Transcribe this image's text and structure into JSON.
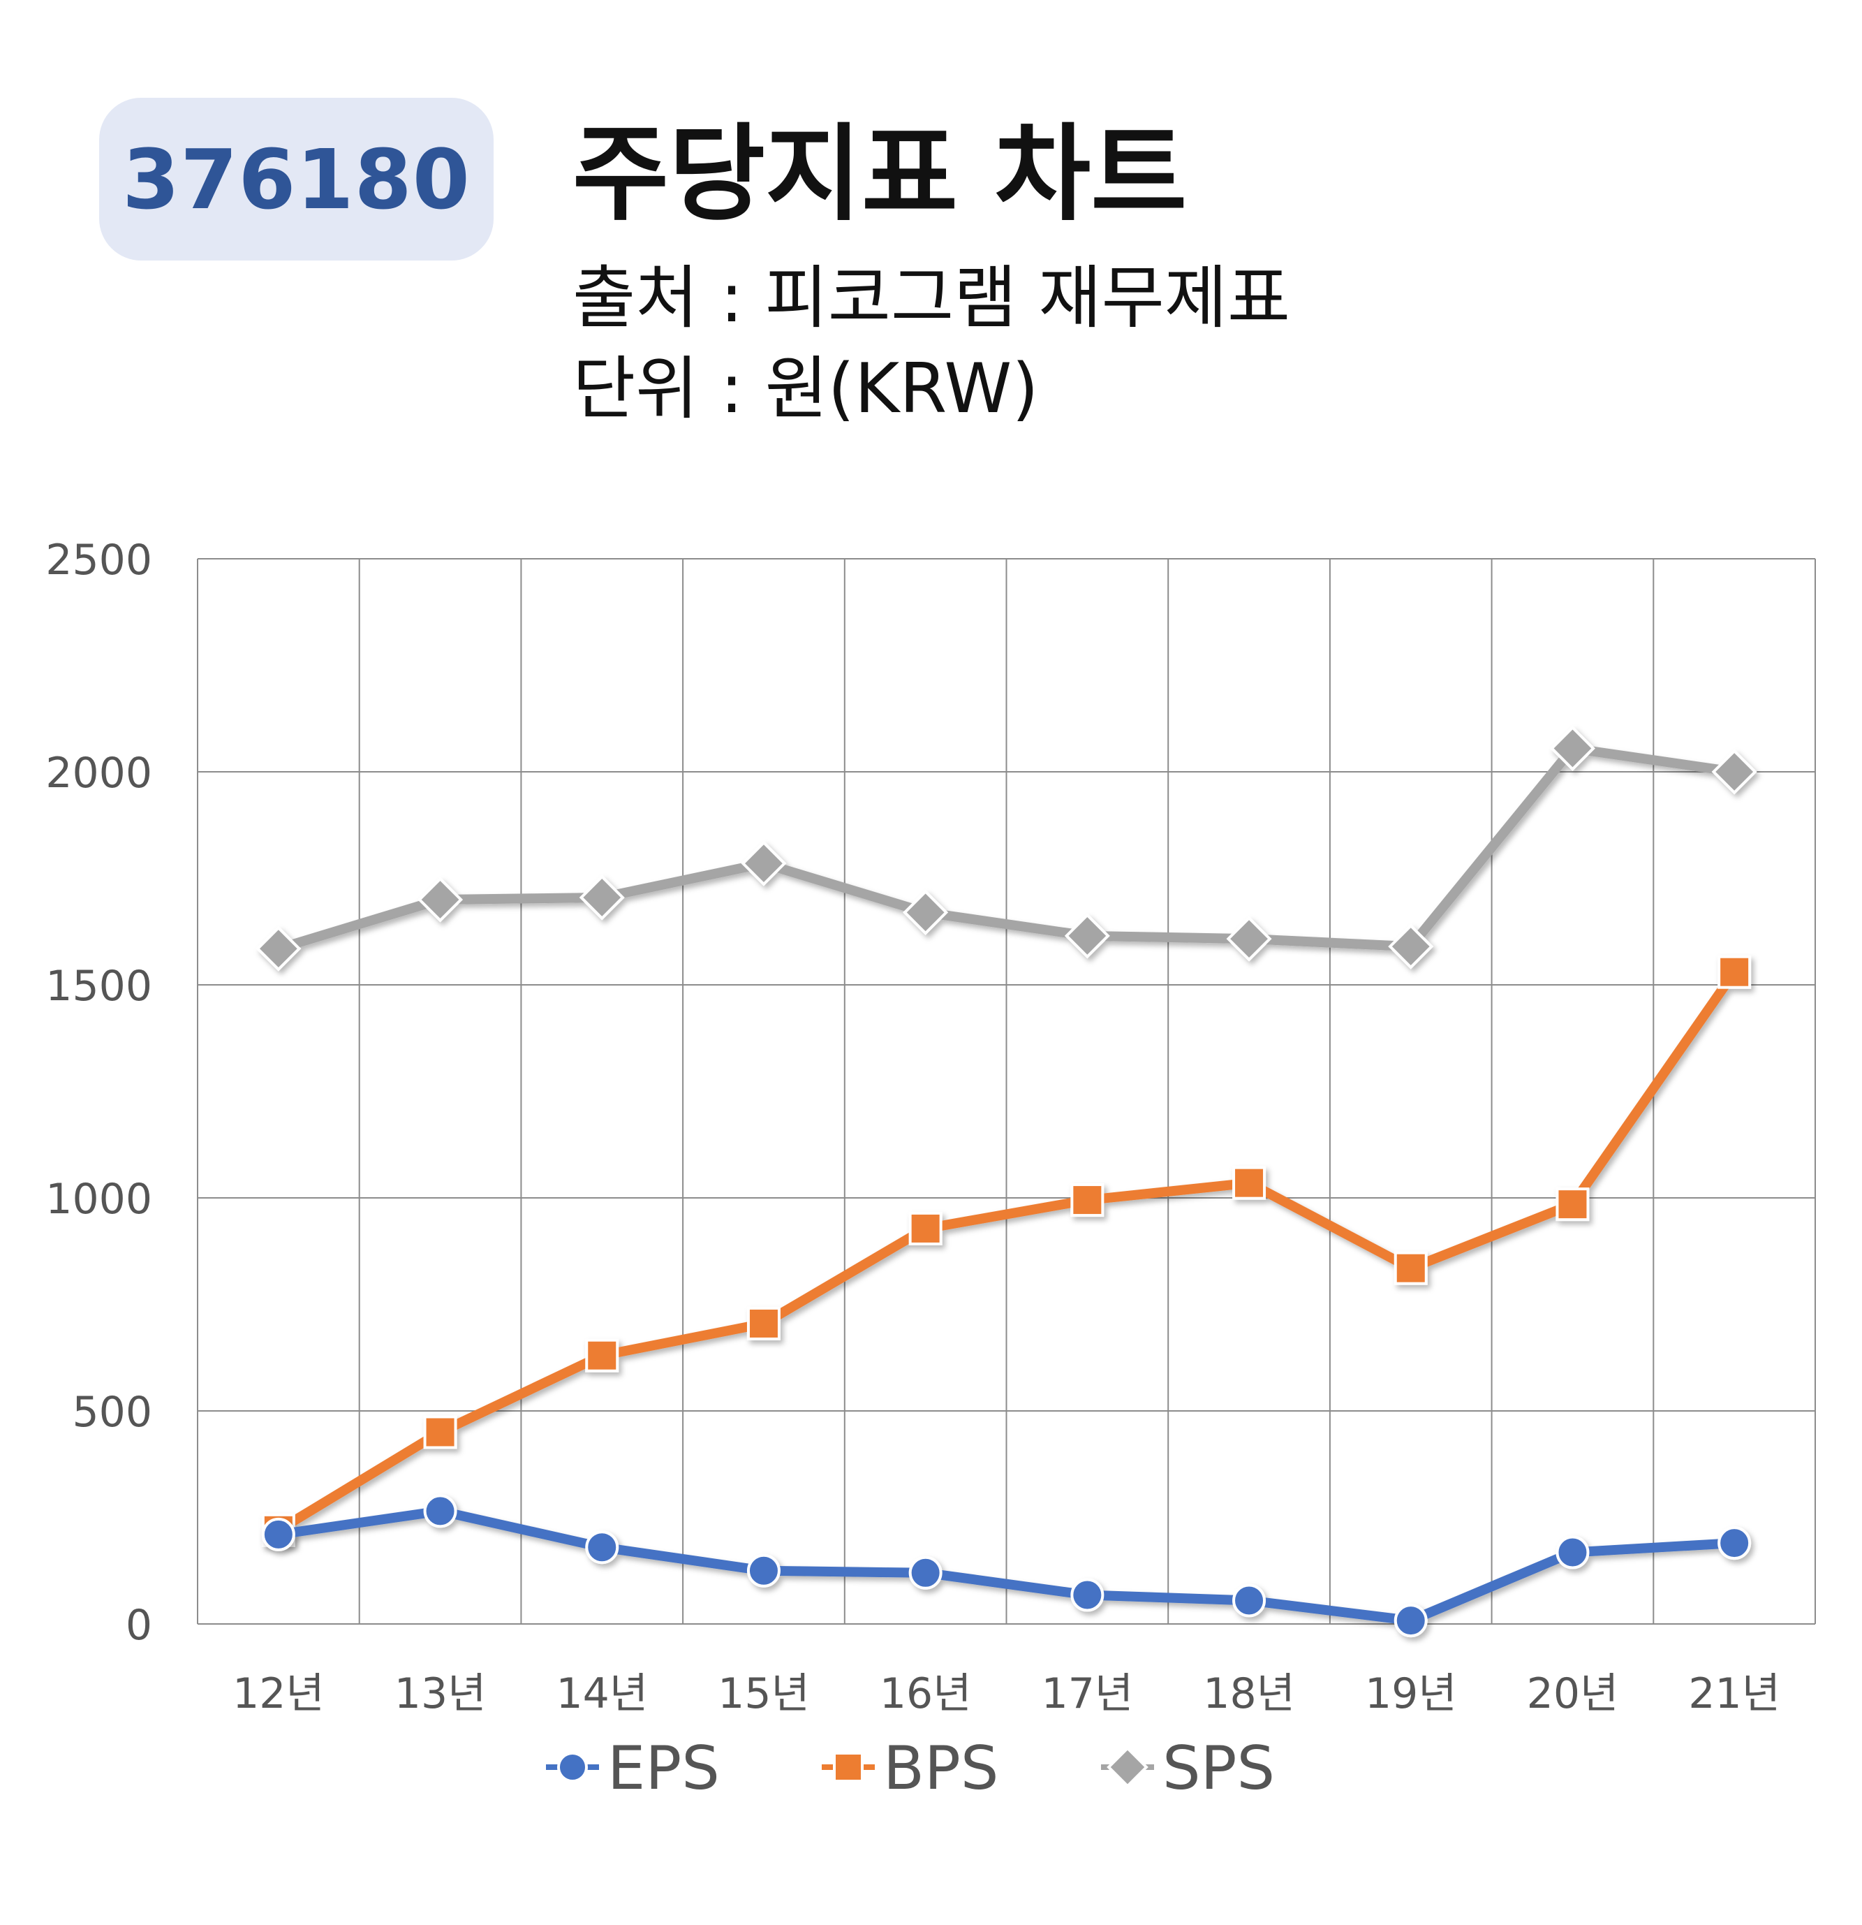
{
  "header": {
    "code": "376180",
    "title": "주당지표 차트",
    "source": "출처 : 피코그램 재무제표",
    "unit": "단위 : 원(KRW)"
  },
  "colors": {
    "EPS": "#4472c4",
    "BPS": "#ed7d31",
    "SPS": "#a5a5a5",
    "badge_bg": "#e3e8f5",
    "badge_text": "#2f5597",
    "grid": "#8c8c8c",
    "axis_text": "#555555"
  },
  "chart_data": {
    "type": "line",
    "categories": [
      "12년",
      "13년",
      "14년",
      "15년",
      "16년",
      "17년",
      "18년",
      "19년",
      "20년",
      "21년"
    ],
    "series": [
      {
        "name": "EPS",
        "marker": "circle",
        "values": [
          210,
          265,
          180,
          125,
          120,
          68,
          55,
          8,
          168,
          190
        ]
      },
      {
        "name": "BPS",
        "marker": "square",
        "values": [
          220,
          450,
          630,
          705,
          928,
          995,
          1035,
          835,
          985,
          1530
        ]
      },
      {
        "name": "SPS",
        "marker": "diamond",
        "values": [
          1585,
          1700,
          1705,
          1785,
          1670,
          1615,
          1608,
          1590,
          2055,
          2000
        ]
      }
    ],
    "y_ticks": [
      "0",
      "500",
      "1000",
      "1500",
      "2000",
      "2500"
    ],
    "ylim": [
      0,
      2500
    ],
    "grid": true,
    "legend_position": "bottom"
  }
}
